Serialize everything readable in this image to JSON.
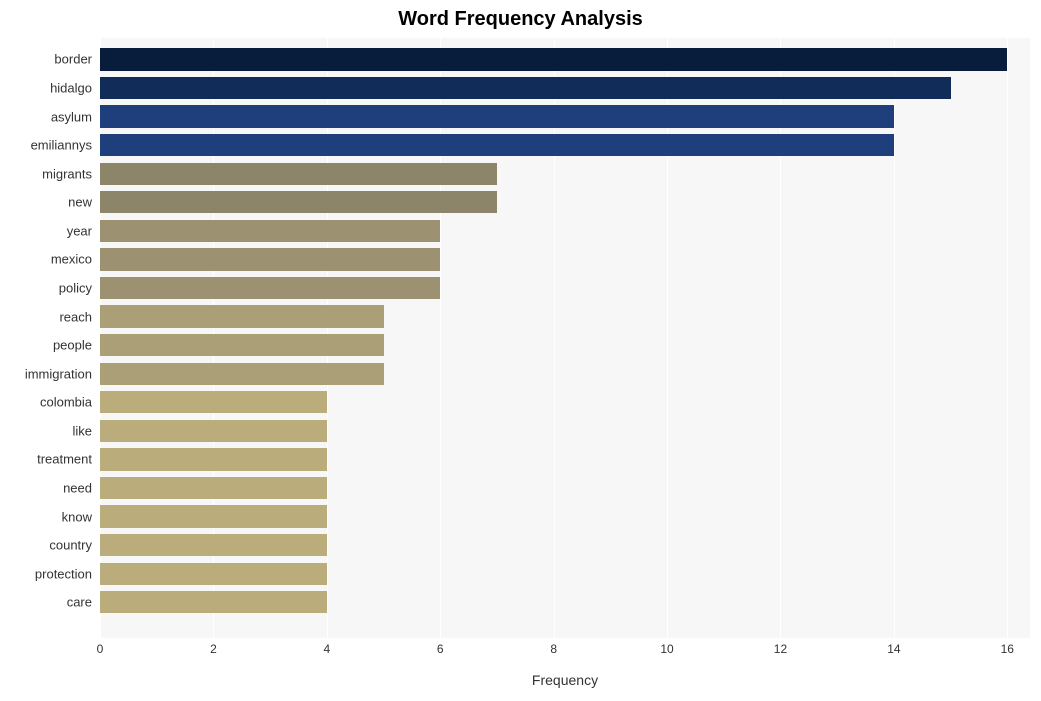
{
  "chart": {
    "type": "bar",
    "title": "Word Frequency Analysis",
    "title_fontsize": 20,
    "title_fontweight": "bold",
    "title_color": "#000000",
    "xlabel": "Frequency",
    "xlabel_fontsize": 14,
    "xlabel_color": "#333333",
    "background_color": "#ffffff",
    "plot_background": "#f7f7f7",
    "grid_color": "#ffffff",
    "xlim": [
      0,
      16.4
    ],
    "xtick_step": 2,
    "xticks": [
      0,
      2,
      4,
      6,
      8,
      10,
      12,
      14,
      16
    ],
    "tick_fontsize": 12,
    "tick_color": "#333333",
    "y_label_fontsize": 13,
    "y_label_color": "#333333",
    "bar_height_ratio": 0.78,
    "bars": [
      {
        "label": "border",
        "value": 16,
        "color": "#071d3b"
      },
      {
        "label": "hidalgo",
        "value": 15,
        "color": "#122c5a"
      },
      {
        "label": "asylum",
        "value": 14,
        "color": "#1f3e7c"
      },
      {
        "label": "emiliannys",
        "value": 14,
        "color": "#1f3e7c"
      },
      {
        "label": "migrants",
        "value": 7,
        "color": "#8d8569"
      },
      {
        "label": "new",
        "value": 7,
        "color": "#8d8569"
      },
      {
        "label": "year",
        "value": 6,
        "color": "#9c9271"
      },
      {
        "label": "mexico",
        "value": 6,
        "color": "#9c9271"
      },
      {
        "label": "policy",
        "value": 6,
        "color": "#9c9271"
      },
      {
        "label": "reach",
        "value": 5,
        "color": "#ab9f77"
      },
      {
        "label": "people",
        "value": 5,
        "color": "#ab9f77"
      },
      {
        "label": "immigration",
        "value": 5,
        "color": "#ab9f77"
      },
      {
        "label": "colombia",
        "value": 4,
        "color": "#bbac7c"
      },
      {
        "label": "like",
        "value": 4,
        "color": "#bbac7c"
      },
      {
        "label": "treatment",
        "value": 4,
        "color": "#bbac7c"
      },
      {
        "label": "need",
        "value": 4,
        "color": "#bbac7c"
      },
      {
        "label": "know",
        "value": 4,
        "color": "#bbac7c"
      },
      {
        "label": "country",
        "value": 4,
        "color": "#bbac7c"
      },
      {
        "label": "protection",
        "value": 4,
        "color": "#bbac7c"
      },
      {
        "label": "care",
        "value": 4,
        "color": "#bbac7c"
      }
    ]
  }
}
